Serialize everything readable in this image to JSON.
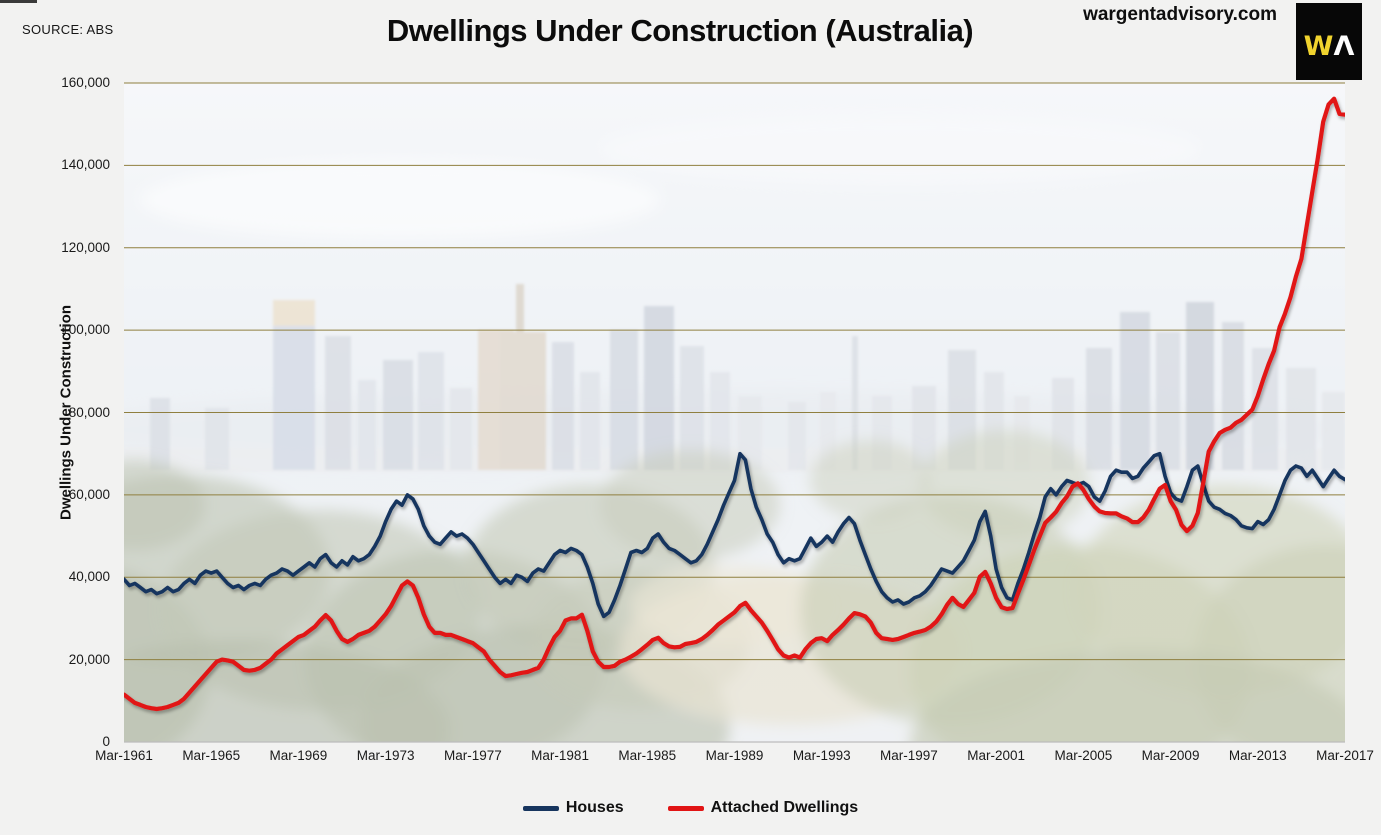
{
  "source_label": "SOURCE: ABS",
  "title": "Dwellings Under Construction (Australia)",
  "website": "wargentadvisory.com",
  "logo": {
    "letter_w": "W",
    "letter_a": "Λ",
    "background": "#070707",
    "w_color": "#f0d32e",
    "a_color": "#fdfdfd"
  },
  "background_note": "faded photo watermark of Melbourne city skyline with parkland trees",
  "chart_data": {
    "type": "line",
    "title": "Dwellings Under Construction (Australia)",
    "ylabel": "Dwellings Under Construction",
    "xlabel": "",
    "ylim": [
      0,
      160000
    ],
    "xlim": [
      1961.0,
      2017.0
    ],
    "grid": "horizontal",
    "gridline_color": "#8f7f3f",
    "zero_line_color": "#bdbdbd",
    "legend_position": "bottom",
    "y_ticks": [
      "0",
      "20,000",
      "40,000",
      "60,000",
      "80,000",
      "100,000",
      "120,000",
      "140,000",
      "160,000"
    ],
    "x_ticks": [
      "Mar-1961",
      "Mar-1965",
      "Mar-1969",
      "Mar-1973",
      "Mar-1977",
      "Mar-1981",
      "Mar-1985",
      "Mar-1989",
      "Mar-1993",
      "Mar-1997",
      "Mar-2001",
      "Mar-2005",
      "Mar-2009",
      "Mar-2013",
      "Mar-2017"
    ],
    "x_start": 1961.0,
    "x_step": 0.25,
    "x_step_unit": "quarter (Mar = .0 of each year)",
    "series": [
      {
        "name": "Houses",
        "color": "#17355e",
        "values": [
          39500,
          38000,
          38500,
          37500,
          36500,
          37000,
          36000,
          36500,
          37500,
          36500,
          37000,
          38500,
          39500,
          38500,
          40500,
          41500,
          41000,
          41500,
          40000,
          38500,
          37500,
          38000,
          37000,
          38000,
          38500,
          38000,
          39500,
          40500,
          41000,
          42000,
          41500,
          40500,
          41500,
          42500,
          43500,
          42500,
          44500,
          45500,
          43500,
          42500,
          44000,
          43000,
          45000,
          44000,
          44500,
          45500,
          47500,
          50000,
          53500,
          56500,
          58500,
          57500,
          60000,
          59000,
          56500,
          52500,
          50000,
          48500,
          48000,
          49500,
          51000,
          50000,
          50500,
          49500,
          48000,
          46000,
          44000,
          42000,
          40000,
          38500,
          39500,
          38500,
          40500,
          40000,
          39000,
          41000,
          42000,
          41500,
          43500,
          45500,
          46500,
          46000,
          47000,
          46500,
          45500,
          42500,
          38500,
          33500,
          30500,
          31500,
          34500,
          38000,
          42000,
          46000,
          46500,
          46000,
          47000,
          49500,
          50500,
          48500,
          47000,
          46500,
          45500,
          44500,
          43500,
          44000,
          45500,
          48000,
          51000,
          54000,
          57500,
          60500,
          63500,
          70000,
          68500,
          61500,
          57000,
          54000,
          50500,
          48500,
          45500,
          43500,
          44500,
          44000,
          44500,
          47000,
          49500,
          47500,
          48500,
          50000,
          48500,
          51000,
          53000,
          54500,
          53000,
          49000,
          45500,
          42000,
          39000,
          36500,
          35000,
          34000,
          34500,
          33500,
          34000,
          35000,
          35500,
          36500,
          38000,
          40000,
          42000,
          41500,
          41000,
          42500,
          44000,
          46500,
          49000,
          53500,
          56000,
          50000,
          42000,
          37500,
          35000,
          34500,
          38500,
          42000,
          46000,
          50500,
          54500,
          59500,
          61500,
          60000,
          62000,
          63500,
          63000,
          62500,
          63000,
          62000,
          59500,
          58500,
          61000,
          64500,
          66000,
          65500,
          65500,
          64000,
          64500,
          66500,
          68000,
          69500,
          70000,
          64500,
          60500,
          59000,
          58500,
          62000,
          66000,
          67000,
          62500,
          58500,
          57000,
          56500,
          55500,
          55000,
          54000,
          52500,
          52000,
          51800,
          53500,
          52800,
          54000,
          56500,
          60000,
          63500,
          66000,
          67000,
          66500,
          64500,
          66000,
          64000,
          62000,
          64000,
          66000,
          64500,
          63700
        ]
      },
      {
        "name": "Attached Dwellings",
        "color": "#e11414",
        "values": [
          11500,
          10500,
          9500,
          9000,
          8500,
          8200,
          8000,
          8200,
          8500,
          9000,
          9500,
          10500,
          12000,
          13500,
          15000,
          16500,
          18000,
          19500,
          20000,
          19800,
          19500,
          18500,
          17500,
          17300,
          17500,
          18000,
          19000,
          20000,
          21500,
          22500,
          23500,
          24500,
          25500,
          26000,
          27000,
          28000,
          29500,
          30800,
          29500,
          27000,
          25000,
          24300,
          25000,
          26000,
          26500,
          27000,
          28000,
          29500,
          31000,
          33000,
          35500,
          38000,
          39000,
          38000,
          35000,
          31000,
          28000,
          26500,
          26500,
          26000,
          26000,
          25500,
          25000,
          24500,
          24000,
          23000,
          22000,
          20000,
          18500,
          17000,
          16000,
          16200,
          16500,
          16800,
          17000,
          17500,
          18000,
          20000,
          23000,
          25500,
          27000,
          29500,
          30000,
          30000,
          30900,
          27000,
          22000,
          19500,
          18200,
          18200,
          18500,
          19500,
          20000,
          20700,
          21500,
          22500,
          23600,
          24800,
          25300,
          24000,
          23200,
          23000,
          23100,
          23800,
          24000,
          24300,
          25000,
          26000,
          27200,
          28500,
          29500,
          30500,
          31500,
          33000,
          33800,
          32000,
          30500,
          29000,
          27000,
          24800,
          22500,
          21000,
          20500,
          21000,
          20500,
          22500,
          24000,
          25000,
          25200,
          24500,
          26000,
          27200,
          28500,
          30000,
          31300,
          31000,
          30500,
          29000,
          26500,
          25200,
          25000,
          24800,
          25000,
          25500,
          26000,
          26500,
          26800,
          27200,
          28000,
          29200,
          31000,
          33300,
          35000,
          33500,
          32800,
          34500,
          36200,
          40100,
          41300,
          38500,
          35000,
          32700,
          32300,
          32500,
          36000,
          39400,
          43000,
          46700,
          50000,
          53200,
          54500,
          55900,
          58000,
          59600,
          62000,
          62800,
          61200,
          59000,
          57200,
          56000,
          55600,
          55500,
          55500,
          54800,
          54300,
          53400,
          53400,
          54500,
          56400,
          59000,
          61500,
          62400,
          58500,
          56400,
          52700,
          51200,
          52500,
          55600,
          63000,
          70500,
          73000,
          75000,
          75800,
          76300,
          77500,
          78200,
          79500,
          80700,
          84000,
          88000,
          91800,
          95000,
          100700,
          104000,
          108000,
          113000,
          117300,
          125400,
          133600,
          141600,
          150600,
          154800,
          156200,
          152500,
          152300
        ]
      }
    ]
  }
}
